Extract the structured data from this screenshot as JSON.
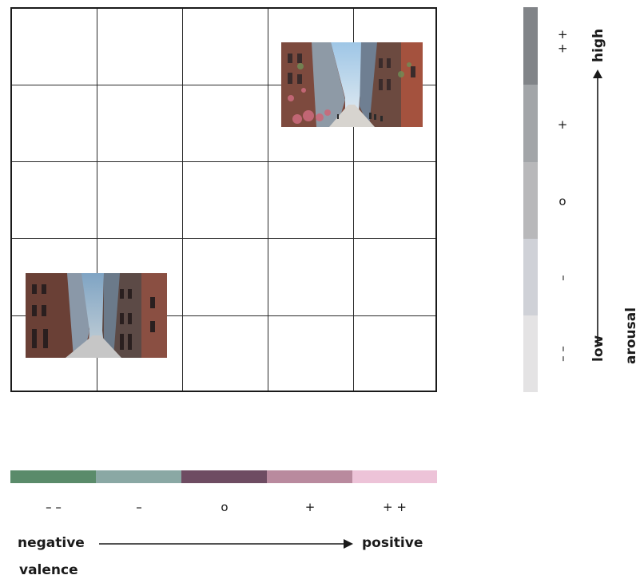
{
  "arousal": {
    "name": "arousal",
    "low_label": "low",
    "high_label": "high",
    "levels_top_to_bottom": [
      "+ +",
      "+",
      "o",
      "–",
      "– –"
    ],
    "colors_top_to_bottom": [
      "#818488",
      "#a2a5a8",
      "#b8b8ba",
      "#cfd1d7",
      "#e4e3e4"
    ]
  },
  "valence": {
    "name": "valence",
    "negative_label": "negative",
    "positive_label": "positive",
    "levels_left_to_right": [
      "– –",
      "–",
      "o",
      "+",
      "+ +"
    ],
    "colors_left_to_right": [
      "#5a8b6a",
      "#8aa8a4",
      "#6e4c62",
      "#b98a9e",
      "#edc3d8"
    ]
  },
  "grid": {
    "rows": 5,
    "columns": 5
  },
  "images": [
    {
      "name": "street-image-busy",
      "valence_cell": 4,
      "arousal_cell": 5
    },
    {
      "name": "street-image-empty",
      "valence_cell": 1,
      "arousal_cell": 2
    }
  ]
}
